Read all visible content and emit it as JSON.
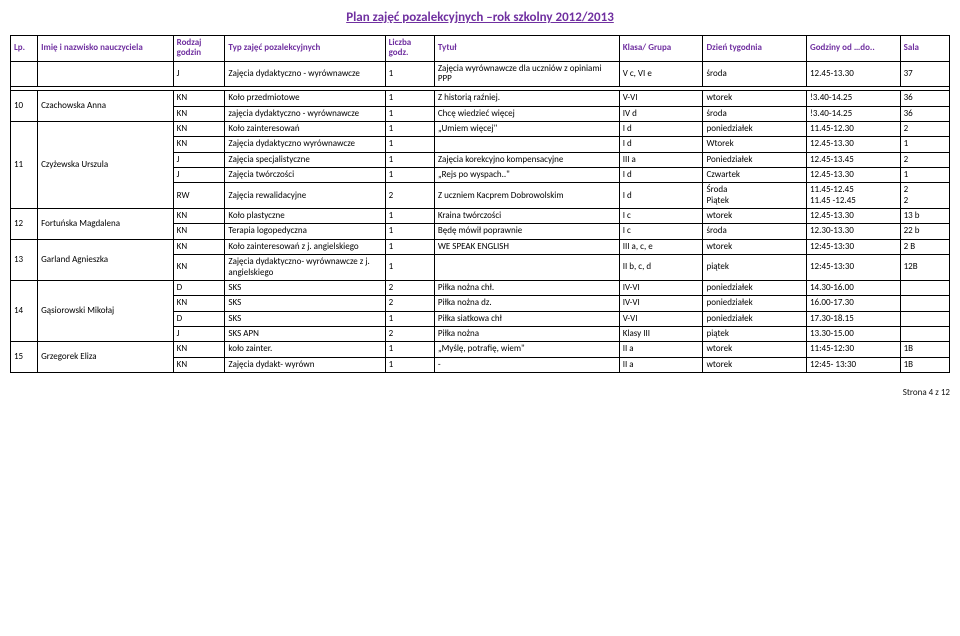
{
  "title": "Plan zajęć pozalekcyjnych –rok szkolny 2012/2013",
  "footer": "Strona 4 z 12",
  "colors": {
    "accent": "#7030a0"
  },
  "headers": {
    "lp": "Lp.",
    "name": "Imię i nazwisko nauczyciela",
    "rodzaj": "Rodzaj godzin",
    "typ": "Typ zajęć pozalekcyjnych",
    "lgodz": "Liczba godz.",
    "tytul": "Tytuł",
    "klasa": "Klasa/ Grupa",
    "dzien": "Dzień tygodnia",
    "godziny": "Godziny od …do..",
    "sala": "Sala"
  },
  "topRow": {
    "rodzaj": "J",
    "typ": "Zajęcia dydaktyczno - wyrównawcze",
    "lgodz": "1",
    "tytul": "Zajęcia  wyrównawcze dla uczniów z opiniami PPP",
    "klasa": "V c, VI e",
    "dzien": "środa",
    "godziny": "12.45-13.30",
    "sala": "37"
  },
  "groups": [
    {
      "lp": "10",
      "name": "Czachowska Anna",
      "rows": [
        {
          "r": "KN",
          "typ": "Koło przedmiotowe",
          "lg": "1",
          "t": "Z historią raźniej.",
          "k": "V-VI",
          "d": "wtorek",
          "g": "!3.40-14.25",
          "s": "36"
        },
        {
          "r": "KN",
          "typ": "zajęcia dydaktyczno - wyrównawcze",
          "lg": "1",
          "t": "Chcę wiedzieć więcej",
          "k": "IV d",
          "d": "środa",
          "g": "!3.40-14.25",
          "s": "36"
        }
      ]
    },
    {
      "lp": "11",
      "name": "Czyżewska Urszula",
      "rows": [
        {
          "r": "KN",
          "typ": "Koło zainteresowań",
          "lg": "1",
          "t": "„Umiem więcej\"",
          "k": "I d",
          "d": "poniedziałek",
          "g": "11.45-12.30",
          "s": "2"
        },
        {
          "r": "KN",
          "typ": "Zajęcia dydaktyczno wyrównawcze",
          "lg": "1",
          "t": "",
          "k": "I d",
          "d": "Wtorek",
          "g": "12.45-13.30",
          "s": "1"
        },
        {
          "r": "J",
          "typ": "Zajęcia specjalistyczne",
          "lg": "1",
          "t": "Zajęcia korekcyjno kompensacyjne",
          "k": "III a",
          "d": "Poniedziałek",
          "g": "12.45-13.45",
          "s": "2"
        },
        {
          "r": "J",
          "typ": "Zajęcia twórczości",
          "lg": "1",
          "t": "„Rejs po wyspach..\"",
          "k": "I d",
          "d": "Czwartek",
          "g": "12.45-13.30",
          "s": "1"
        },
        {
          "r": "RW",
          "typ": "Zajęcia rewalidacyjne",
          "lg": "2",
          "t": "Z uczniem Kacprem Dobrowolskim",
          "k": "I d",
          "d": "Środa\nPiątek",
          "g": "11.45-12.45\n11.45 -12.45",
          "s": "2\n2"
        }
      ]
    },
    {
      "lp": "12",
      "name": "Fortuńska Magdalena",
      "rows": [
        {
          "r": "KN",
          "typ": "Koło plastyczne",
          "lg": "1",
          "t": "Kraina twórczości",
          "k": "I c",
          "d": "wtorek",
          "g": "12.45-13.30",
          "s": "13 b"
        },
        {
          "r": "KN",
          "typ": "Terapia logopedyczna",
          "lg": "1",
          "t": "Będę mówił poprawnie",
          "k": "I c",
          "d": "środa",
          "g": "12.30-13.30",
          "s": "22 b"
        }
      ]
    },
    {
      "lp": "13",
      "name": "Garland Agnieszka",
      "rows": [
        {
          "r": "KN",
          "typ": "Koło zainteresowań z j. angielskiego",
          "lg": "1",
          "t": "WE SPEAK ENGLISH",
          "k": "III a, c, e",
          "d": "wtorek",
          "g": "12:45-13:30",
          "s": "2 B"
        },
        {
          "r": "KN",
          "typ": "Zajęcia dydaktyczno- wyrównawcze z j. angielskiego",
          "lg": "1",
          "t": "",
          "k": "II b, c, d",
          "d": "piątek",
          "g": "12:45-13:30",
          "s": "12B"
        }
      ]
    },
    {
      "lp": "14",
      "name": "Gąsiorowski Mikołaj",
      "rows": [
        {
          "r": "D",
          "typ": "SKS",
          "lg": "2",
          "t": "Piłka nożna chł.",
          "k": "IV-VI",
          "d": "poniedziałek",
          "g": "14.30-16.00",
          "s": ""
        },
        {
          "r": "KN",
          "typ": "SKS",
          "lg": "2",
          "t": "Piłka nożna dz.",
          "k": "IV-VI",
          "d": "poniedziałek",
          "g": "16.00-17.30",
          "s": ""
        },
        {
          "r": "D",
          "typ": "SKS",
          "lg": "1",
          "t": "Piłka siatkowa chł",
          "k": "V-VI",
          "d": "poniedziałek",
          "g": "17.30-18.15",
          "s": ""
        },
        {
          "r": "J",
          "typ": "SKS APN",
          "lg": "2",
          "t": "Piłka nożna",
          "k": "Klasy III",
          "d": "piątek",
          "g": "13.30-15.00",
          "s": ""
        }
      ]
    },
    {
      "lp": "15",
      "name": "Grzegorek Eliza",
      "rows": [
        {
          "r": "KN",
          "typ": "koło zainter.",
          "lg": "1",
          "t": "„Myślę, potrafię, wiem\"",
          "k": "II a",
          "d": "wtorek",
          "g": "11:45-12:30",
          "s": "1B"
        },
        {
          "r": "KN",
          "typ": "Zajęcia dydakt- wyrówn",
          "lg": "1",
          "t": "-",
          "k": "II a",
          "d": "wtorek",
          "g": "12:45- 13:30",
          "s": "1B"
        }
      ]
    }
  ]
}
